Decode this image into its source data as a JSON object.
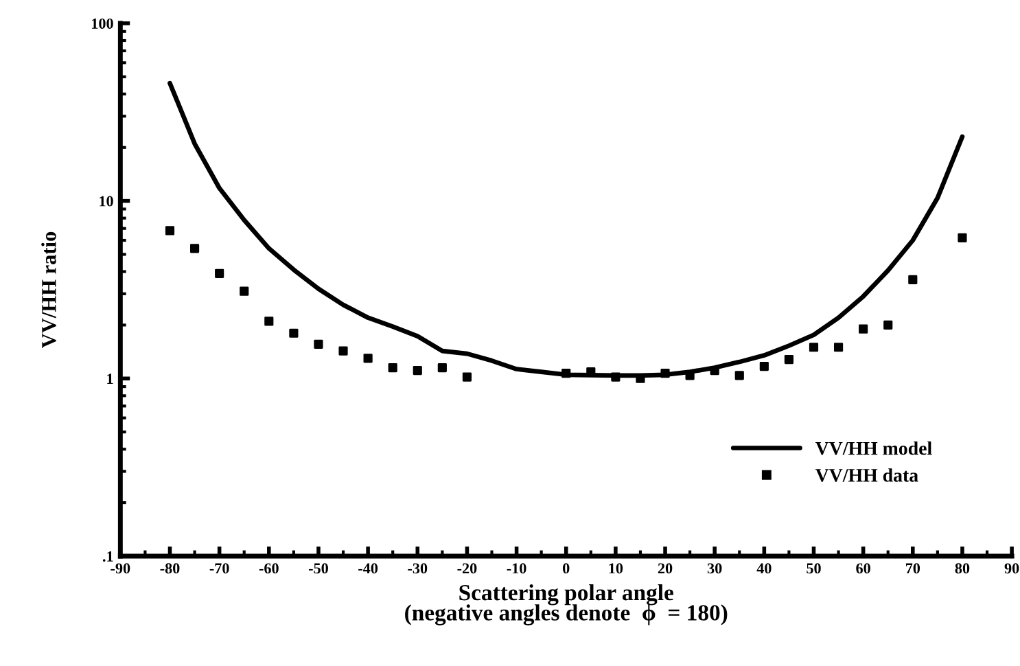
{
  "chart_data": {
    "type": "line",
    "xlabel": "Scattering polar angle\n(negative angles denote  ϕ  = 180)",
    "ylabel": "VV/HH ratio",
    "log": "y",
    "xlim": [
      -90,
      90
    ],
    "xticks": [
      -90,
      -80,
      -70,
      -60,
      -50,
      -40,
      -30,
      -20,
      -10,
      0,
      10,
      20,
      30,
      40,
      50,
      60,
      70,
      80,
      90
    ],
    "ylim": [
      0.1,
      100
    ],
    "yticks": [
      {
        "value": 0.1,
        "label": ".1"
      },
      1,
      10,
      100
    ],
    "grid": false,
    "legend": "bottom right",
    "series": [
      {
        "name": "VV/HH model",
        "color": "#000000",
        "line_style": "solid",
        "marker": "none",
        "x": [
          -80,
          -75,
          -70,
          -65,
          -60,
          -55,
          -50,
          -45,
          -40,
          -35,
          -30,
          -25,
          -20,
          -15,
          -10,
          -5,
          0,
          10,
          15,
          20,
          25,
          30,
          35,
          40,
          45,
          50,
          55,
          60,
          65,
          70,
          75,
          80
        ],
        "values": [
          46,
          21,
          11.8,
          7.8,
          5.4,
          4.1,
          3.2,
          2.6,
          2.2,
          1.96,
          1.73,
          1.43,
          1.38,
          1.26,
          1.13,
          1.09,
          1.05,
          1.04,
          1.04,
          1.05,
          1.09,
          1.15,
          1.24,
          1.35,
          1.53,
          1.76,
          2.2,
          2.9,
          4.06,
          6.0,
          10.4,
          23
        ]
      },
      {
        "name": "VV/HH data",
        "type": "scatter",
        "color": "#000000",
        "marker": "square",
        "x": [
          -80,
          -75,
          -70,
          -65,
          -60,
          -55,
          -50,
          -45,
          -40,
          -35,
          -30,
          -25,
          -20,
          0,
          5,
          10,
          15,
          20,
          25,
          30,
          35,
          40,
          45,
          50,
          55,
          60,
          65,
          70,
          80
        ],
        "values": [
          6.8,
          5.4,
          3.9,
          3.1,
          2.1,
          1.8,
          1.56,
          1.43,
          1.3,
          1.15,
          1.11,
          1.15,
          1.02,
          1.07,
          1.09,
          1.02,
          1.0,
          1.07,
          1.04,
          1.11,
          1.04,
          1.17,
          1.28,
          1.5,
          1.5,
          1.9,
          2.0,
          3.6,
          6.2
        ]
      }
    ]
  }
}
